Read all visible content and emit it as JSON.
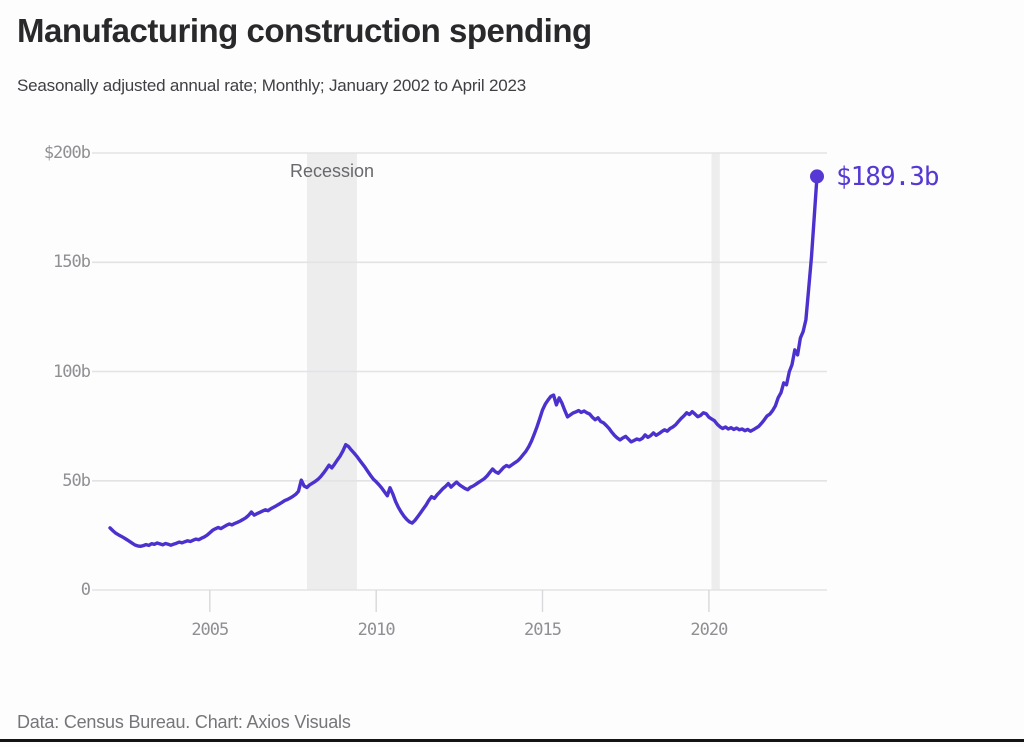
{
  "header": {
    "title": "Manufacturing construction spending",
    "subtitle": "Seasonally adjusted annual rate; Monthly; January 2002 to April 2023"
  },
  "footer": {
    "source_line": "Data: Census Bureau. Chart: Axios Visuals"
  },
  "chart_data": {
    "type": "line",
    "title": "Manufacturing construction spending",
    "unit": "billions of dollars, seasonally adjusted annual rate",
    "frequency": "monthly",
    "x_start_year": 2002.0,
    "x_end_year": 2023.25,
    "x_start_label": "January 2002",
    "x_end_label": "April 2023",
    "ylim": [
      0,
      200
    ],
    "y_tick_labels": [
      "$200b",
      "150b",
      "100b",
      "50b",
      "0"
    ],
    "y_tick_values": [
      200,
      150,
      100,
      50,
      0
    ],
    "x_tick_labels": [
      "2005",
      "2010",
      "2015",
      "2020"
    ],
    "x_tick_values": [
      2005,
      2010,
      2015,
      2020
    ],
    "grid": "horizontal-only",
    "recession_label": "Recession",
    "recession_bands": [
      {
        "start": 2007.92,
        "end": 2009.42
      },
      {
        "start": 2020.08,
        "end": 2020.33
      }
    ],
    "end_point": {
      "label": "$189.3b",
      "value": 189.3,
      "date": "April 2023"
    },
    "colors": {
      "line": "#4c31ce",
      "end_dot": "#5639d4",
      "end_label_text": "#5639d4",
      "recession_band": "#ededee",
      "gridline": "#e3e3e5",
      "axis_text": "#909094",
      "title_text": "#29292c"
    },
    "series": [
      {
        "name": "Manufacturing construction spending",
        "values": [
          28.4,
          27.2,
          26.1,
          25.3,
          24.6,
          23.9,
          23.1,
          22.3,
          21.4,
          20.6,
          20.2,
          20.0,
          20.3,
          20.8,
          20.4,
          21.2,
          20.9,
          21.5,
          21.1,
          20.7,
          21.3,
          20.9,
          20.5,
          21.0,
          21.4,
          21.9,
          21.6,
          22.1,
          22.5,
          22.2,
          22.8,
          23.3,
          23.0,
          23.7,
          24.3,
          25.1,
          26.2,
          27.3,
          28.0,
          28.6,
          28.1,
          28.9,
          29.6,
          30.2,
          29.8,
          30.5,
          31.0,
          31.6,
          32.3,
          33.1,
          34.2,
          35.7,
          34.3,
          34.9,
          35.5,
          36.1,
          36.7,
          36.3,
          37.2,
          37.9,
          38.6,
          39.3,
          40.1,
          40.9,
          41.4,
          42.1,
          42.9,
          43.8,
          45.2,
          50.3,
          47.6,
          46.9,
          48.1,
          48.9,
          49.7,
          50.6,
          51.9,
          53.5,
          55.3,
          57.1,
          55.9,
          57.6,
          59.5,
          61.3,
          63.6,
          66.5,
          65.7,
          64.1,
          62.7,
          61.2,
          59.5,
          57.8,
          56.1,
          54.3,
          52.4,
          50.7,
          49.5,
          48.2,
          46.7,
          44.9,
          43.1,
          46.8,
          44.0,
          40.5,
          37.9,
          35.7,
          33.8,
          32.3,
          31.2,
          30.6,
          31.9,
          33.6,
          35.3,
          37.1,
          38.9,
          41.0,
          42.7,
          41.9,
          43.6,
          44.9,
          46.3,
          47.4,
          48.7,
          47.1,
          48.3,
          49.4,
          48.2,
          47.3,
          46.5,
          45.9,
          47.0,
          47.6,
          48.4,
          49.3,
          50.1,
          51.0,
          52.2,
          53.8,
          55.4,
          54.1,
          53.4,
          54.7,
          56.1,
          57.0,
          56.4,
          57.3,
          58.2,
          59.1,
          60.3,
          61.9,
          63.5,
          65.6,
          68.1,
          71.3,
          74.7,
          78.4,
          82.4,
          85.1,
          87.0,
          88.6,
          89.2,
          84.7,
          87.9,
          85.6,
          82.3,
          79.2,
          80.1,
          81.0,
          81.5,
          82.1,
          81.3,
          81.9,
          81.1,
          80.5,
          79.1,
          77.9,
          78.8,
          77.1,
          76.5,
          75.3,
          73.9,
          72.2,
          70.7,
          69.5,
          68.7,
          69.6,
          70.3,
          69.0,
          67.8,
          68.4,
          69.1,
          68.7,
          69.4,
          71.0,
          69.9,
          70.6,
          71.9,
          70.8,
          71.6,
          72.5,
          73.3,
          72.7,
          73.9,
          74.6,
          75.6,
          77.1,
          78.5,
          79.7,
          81.1,
          80.3,
          81.6,
          80.5,
          79.3,
          79.9,
          81.1,
          80.7,
          79.1,
          78.3,
          77.5,
          75.9,
          74.7,
          73.9,
          74.6,
          73.7,
          74.3,
          73.5,
          74.1,
          73.3,
          73.7,
          72.9,
          73.5,
          72.7,
          73.3,
          74.1,
          74.9,
          76.3,
          77.9,
          79.7,
          80.5,
          82.1,
          84.3,
          88.0,
          90.3,
          94.8,
          93.9,
          99.9,
          103.1,
          109.9,
          107.6,
          115.4,
          118.2,
          123.7,
          138.0,
          152.6,
          170.5,
          189.3
        ]
      }
    ]
  }
}
